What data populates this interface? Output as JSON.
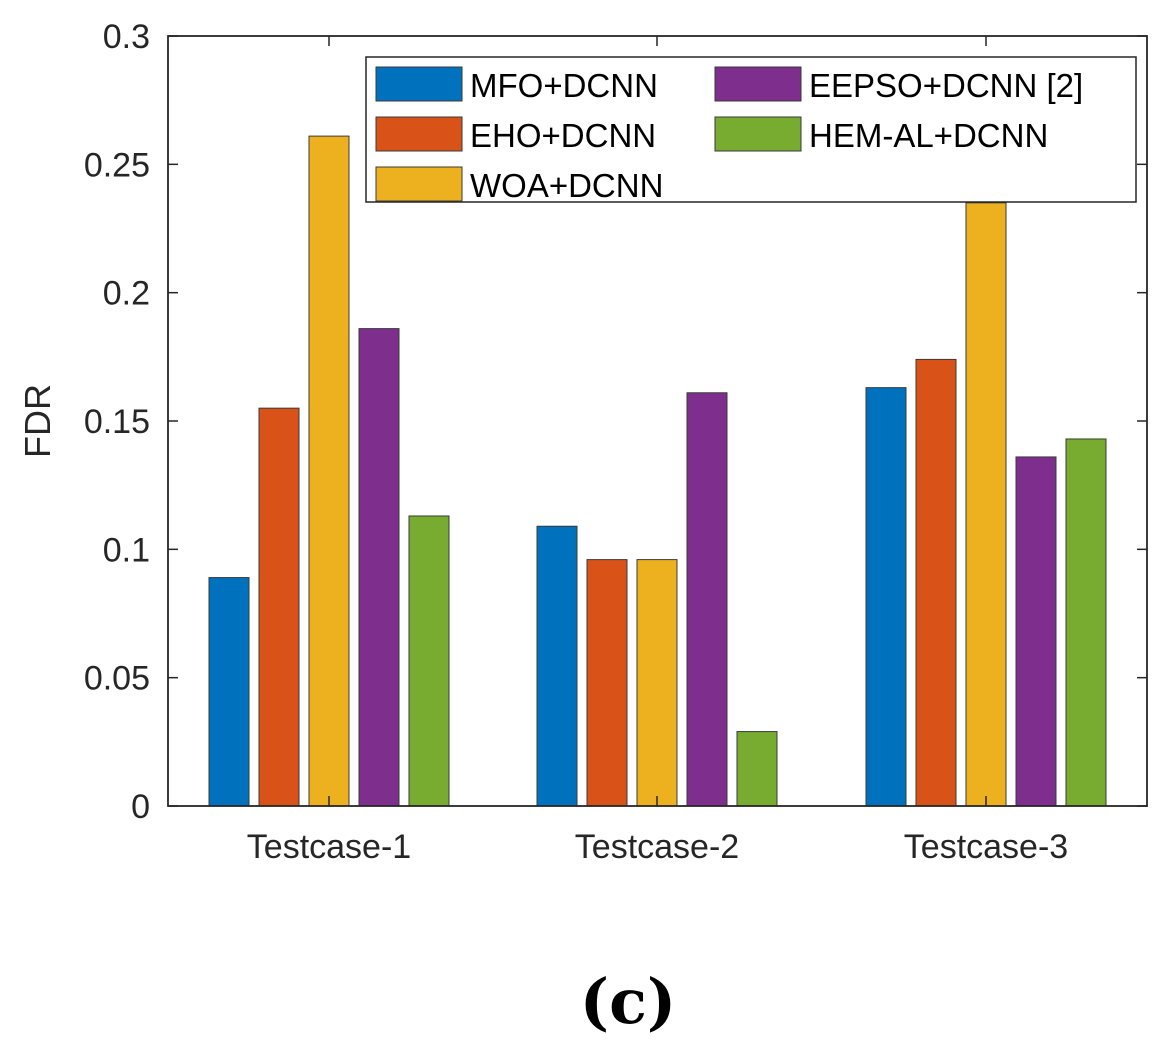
{
  "chart_data": {
    "type": "bar",
    "title": "",
    "xlabel": "",
    "ylabel": "FDR",
    "ylim": [
      0,
      0.3
    ],
    "yticks": [
      "0",
      "0.05",
      "0.1",
      "0.15",
      "0.2",
      "0.25",
      "0.3"
    ],
    "categories": [
      "Testcase-1",
      "Testcase-2",
      "Testcase-3"
    ],
    "series": [
      {
        "name": "MFO+DCNN",
        "color": "#0072BD",
        "values": [
          0.089,
          0.109,
          0.163
        ]
      },
      {
        "name": "EHO+DCNN",
        "color": "#D95319",
        "values": [
          0.155,
          0.096,
          0.174
        ]
      },
      {
        "name": "WOA+DCNN",
        "color": "#EDB120",
        "values": [
          0.261,
          0.096,
          0.235
        ]
      },
      {
        "name": "EEPSO+DCNN [2]",
        "color": "#7E2F8E",
        "values": [
          0.186,
          0.161,
          0.136
        ]
      },
      {
        "name": "HEM-AL+DCNN",
        "color": "#77AC30",
        "values": [
          0.113,
          0.029,
          0.143
        ]
      }
    ],
    "legend_position": "top-right",
    "grid": false
  },
  "caption": "(c)"
}
